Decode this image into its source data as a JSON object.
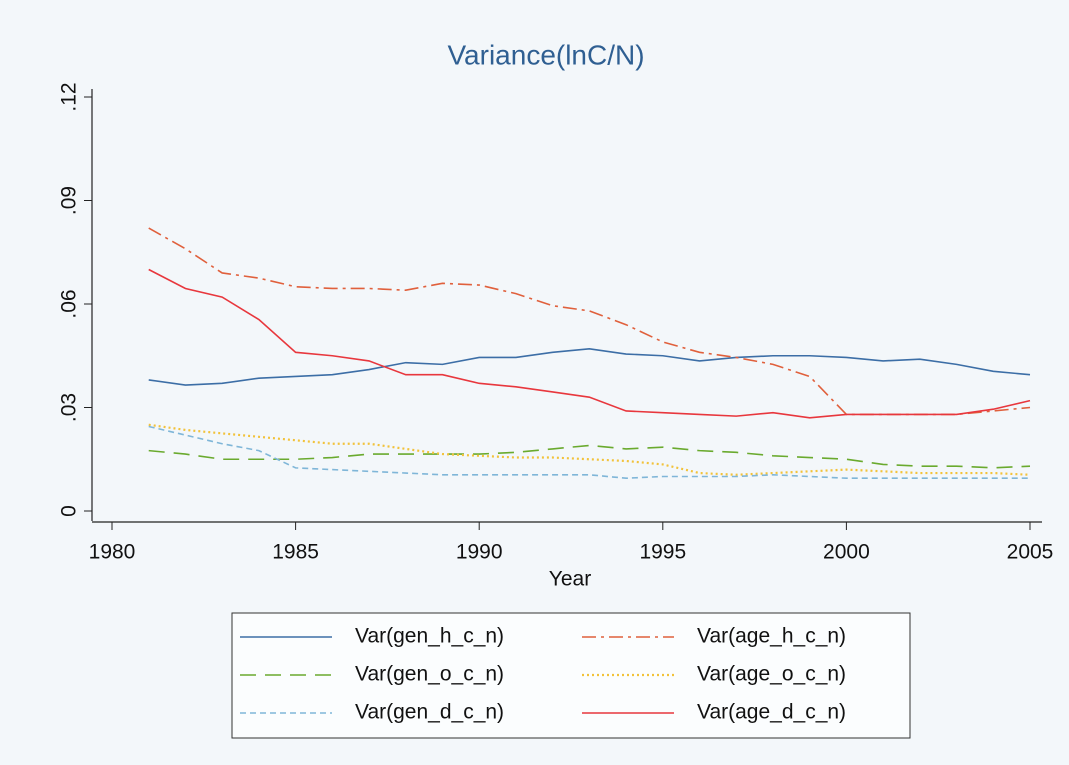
{
  "chart_data": {
    "type": "line",
    "title": "Variance(lnC/N)",
    "x_label": "Year",
    "x": [
      1981,
      1982,
      1983,
      1984,
      1985,
      1986,
      1987,
      1988,
      1989,
      1990,
      1991,
      1992,
      1993,
      1994,
      1995,
      1996,
      1997,
      1998,
      1999,
      2000,
      2001,
      2002,
      2003,
      2004,
      2005
    ],
    "xlim": [
      1980,
      2005
    ],
    "xticks": [
      1980,
      1985,
      1990,
      1995,
      2000,
      2005
    ],
    "ylim": [
      0,
      0.12
    ],
    "yticks": [
      {
        "value": 0,
        "label": "0"
      },
      {
        "value": 0.03,
        "label": ".03"
      },
      {
        "value": 0.06,
        "label": ".06"
      },
      {
        "value": 0.09,
        "label": ".09"
      },
      {
        "value": 0.12,
        "label": ".12"
      }
    ],
    "legend": "bottom",
    "series": [
      {
        "name": "Var(gen_h_c_n)",
        "color": "#3c6ea6",
        "dash": "solid",
        "values": [
          0.038,
          0.0365,
          0.037,
          0.0385,
          0.039,
          0.0395,
          0.041,
          0.043,
          0.0425,
          0.0445,
          0.0445,
          0.046,
          0.047,
          0.0455,
          0.045,
          0.0435,
          0.0445,
          0.045,
          0.045,
          0.0445,
          0.0435,
          0.044,
          0.0425,
          0.0405,
          0.0395
        ]
      },
      {
        "name": "Var(age_h_c_n)",
        "color": "#e0603c",
        "dash": "dashdot",
        "values": [
          0.082,
          0.076,
          0.069,
          0.0675,
          0.065,
          0.0645,
          0.0645,
          0.064,
          0.066,
          0.0655,
          0.063,
          0.0595,
          0.058,
          0.054,
          0.049,
          0.046,
          0.0445,
          0.0425,
          0.039,
          0.028,
          0.028,
          0.028,
          0.028,
          0.029,
          0.03
        ]
      },
      {
        "name": "Var(gen_o_c_n)",
        "color": "#6aaa2e",
        "dash": "longdash",
        "values": [
          0.0175,
          0.0165,
          0.015,
          0.015,
          0.015,
          0.0155,
          0.0165,
          0.0165,
          0.0165,
          0.0165,
          0.017,
          0.018,
          0.019,
          0.018,
          0.0185,
          0.0175,
          0.017,
          0.016,
          0.0155,
          0.015,
          0.0135,
          0.013,
          0.013,
          0.0125,
          0.013
        ]
      },
      {
        "name": "Var(age_o_c_n)",
        "color": "#f2c23a",
        "dash": "dot",
        "values": [
          0.025,
          0.0235,
          0.0225,
          0.0215,
          0.0205,
          0.0195,
          0.0195,
          0.018,
          0.0165,
          0.016,
          0.0155,
          0.0155,
          0.015,
          0.0145,
          0.0135,
          0.011,
          0.0105,
          0.011,
          0.0115,
          0.012,
          0.0115,
          0.011,
          0.011,
          0.011,
          0.0105
        ]
      },
      {
        "name": "Var(gen_d_c_n)",
        "color": "#7fb6d8",
        "dash": "shortdash",
        "values": [
          0.0245,
          0.022,
          0.0195,
          0.0175,
          0.0125,
          0.012,
          0.0115,
          0.011,
          0.0105,
          0.0105,
          0.0105,
          0.0105,
          0.0105,
          0.0095,
          0.01,
          0.01,
          0.01,
          0.0105,
          0.01,
          0.0095,
          0.0095,
          0.0095,
          0.0095,
          0.0095,
          0.0095
        ]
      },
      {
        "name": "Var(age_d_c_n)",
        "color": "#e8373d",
        "dash": "solid",
        "values": [
          0.07,
          0.0645,
          0.062,
          0.0555,
          0.046,
          0.045,
          0.0435,
          0.0395,
          0.0395,
          0.037,
          0.036,
          0.0345,
          0.033,
          0.029,
          0.0285,
          0.028,
          0.0275,
          0.0285,
          0.027,
          0.028,
          0.028,
          0.028,
          0.028,
          0.0295,
          0.032
        ]
      }
    ]
  }
}
